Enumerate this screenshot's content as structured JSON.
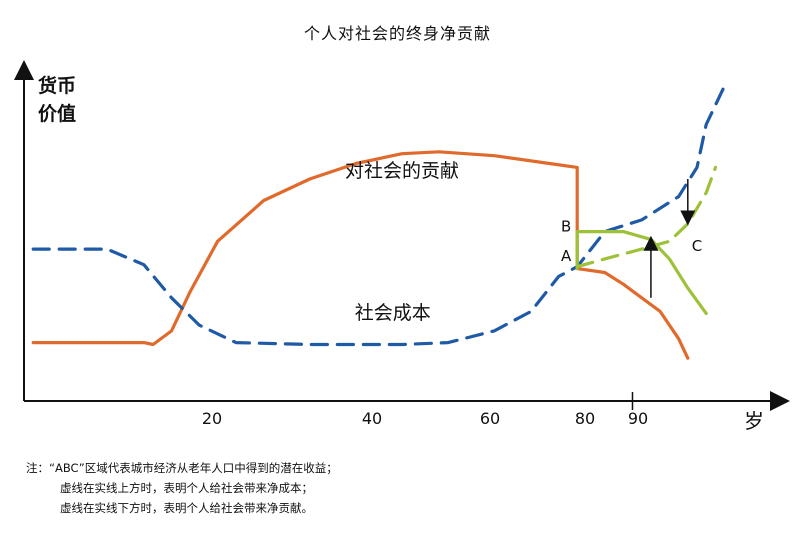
{
  "chart_data": {
    "type": "line",
    "title": "个人对社会的终身净贡献",
    "ylabel": "货币\n价值",
    "xlabel": "岁",
    "x_ticks": [
      {
        "value": 20,
        "label": "20"
      },
      {
        "value": 40,
        "label": "40"
      },
      {
        "value": 60,
        "label": "60"
      },
      {
        "value": 80,
        "label": "80"
      },
      {
        "value": 90,
        "label": "90"
      }
    ],
    "series": [
      {
        "name": "对社会的贡献",
        "style": "solid",
        "color": "#E06A2B",
        "points": [
          [
            0,
            3
          ],
          [
            12,
            3
          ],
          [
            13,
            2.9
          ],
          [
            15,
            3.6
          ],
          [
            17,
            5.6
          ],
          [
            20,
            8.2
          ],
          [
            25,
            10.3
          ],
          [
            30,
            11.4
          ],
          [
            35,
            12.2
          ],
          [
            40,
            12.7
          ],
          [
            44,
            12.8
          ],
          [
            50,
            12.6
          ],
          [
            56,
            12.2
          ],
          [
            59,
            12.0
          ],
          [
            59,
            6.8
          ],
          [
            62,
            6.6
          ],
          [
            64,
            6.0
          ],
          [
            68,
            4.6
          ],
          [
            70,
            3.2
          ],
          [
            71,
            2.2
          ]
        ]
      },
      {
        "name": "社会成本",
        "style": "dashed",
        "color": "#1F5AA6",
        "points": [
          [
            0,
            7.8
          ],
          [
            8,
            7.8
          ],
          [
            12,
            7.0
          ],
          [
            15,
            5.3
          ],
          [
            18,
            3.9
          ],
          [
            22,
            3.0
          ],
          [
            30,
            2.9
          ],
          [
            40,
            2.9
          ],
          [
            45,
            3.0
          ],
          [
            50,
            3.6
          ],
          [
            54,
            4.6
          ],
          [
            57,
            6.4
          ],
          [
            59,
            6.9
          ],
          [
            62,
            8.7
          ],
          [
            66,
            9.3
          ],
          [
            70,
            10.5
          ],
          [
            72,
            12.0
          ],
          [
            73,
            14.2
          ],
          [
            75,
            16.2
          ]
        ]
      },
      {
        "name": "B",
        "style": "solid",
        "color": "#9DC23A",
        "points": [
          [
            59,
            6.8
          ],
          [
            59,
            8.7
          ],
          [
            64,
            8.7
          ],
          [
            67,
            8.3
          ],
          [
            69,
            7.3
          ],
          [
            71,
            5.8
          ],
          [
            73,
            4.5
          ]
        ]
      },
      {
        "name": "A-C",
        "style": "dashed",
        "color": "#9DC23A",
        "points": [
          [
            59,
            6.9
          ],
          [
            62,
            7.3
          ],
          [
            66,
            7.8
          ],
          [
            69,
            8.2
          ],
          [
            71,
            9.1
          ],
          [
            73,
            10.7
          ],
          [
            74,
            12.0
          ]
        ]
      }
    ],
    "annotations": [
      {
        "text": "对社会的贡献",
        "x": 40,
        "y": 11.5
      },
      {
        "text": "社会成本",
        "x": 39,
        "y": 4.2
      },
      {
        "text": "B",
        "x": 57.8,
        "y": 8.7
      },
      {
        "text": "A",
        "x": 57.8,
        "y": 7.2
      },
      {
        "text": "C",
        "x": 72.0,
        "y": 7.7
      }
    ],
    "arrows": [
      {
        "direction": "up",
        "x": 67,
        "from": 5.3,
        "to": 8.1
      },
      {
        "direction": "down",
        "x": 71,
        "from": 11.4,
        "to": 9.4
      }
    ],
    "xlim": [
      -1,
      81
    ],
    "ylim": [
      0,
      17
    ]
  },
  "note": {
    "lines": [
      "注：“ABC”区域代表城市经济从老年人口中得到的潜在收益；",
      "虚线在实线上方时，表明个人给社会带来净成本；",
      "虚线在实线下方时，表明个人给社会带来净贡献。"
    ]
  }
}
